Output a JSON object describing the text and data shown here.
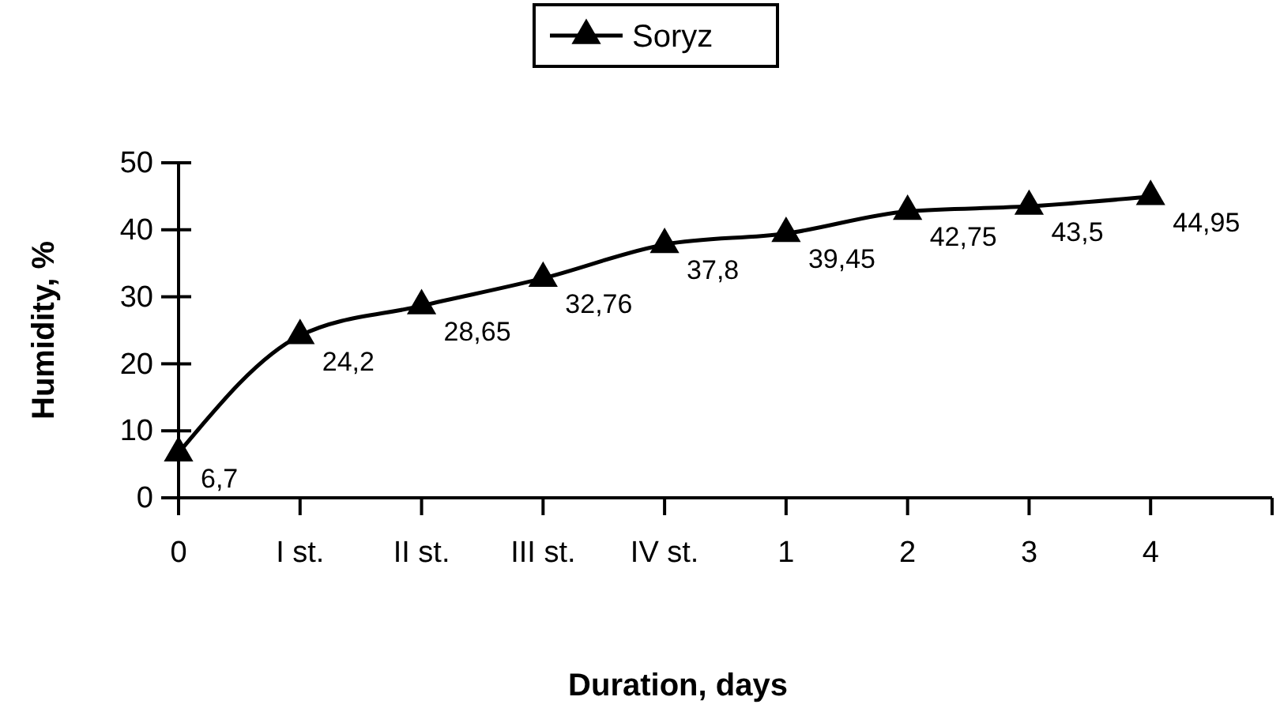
{
  "chart_data": {
    "type": "line",
    "xlabel": "Duration, days",
    "ylabel": "Humidity, %",
    "categories": [
      "0",
      "I st.",
      "II st.",
      "III st.",
      "IV st.",
      "1",
      "2",
      "3",
      "4"
    ],
    "series": [
      {
        "name": "Soryz",
        "color": "#000000",
        "values": [
          6.7,
          24.2,
          28.65,
          32.76,
          37.8,
          39.45,
          42.75,
          43.5,
          44.95
        ],
        "value_labels": [
          "6,7",
          "24,2",
          "28,65",
          "32,76",
          "37,8",
          "39,45",
          "42,75",
          "43,5",
          "44,95"
        ]
      }
    ],
    "ylim": [
      0,
      50
    ],
    "yticks": [
      0,
      10,
      20,
      30,
      40,
      50
    ],
    "grid": false,
    "legend": "top",
    "marker": "triangle",
    "line_style": "solid"
  }
}
